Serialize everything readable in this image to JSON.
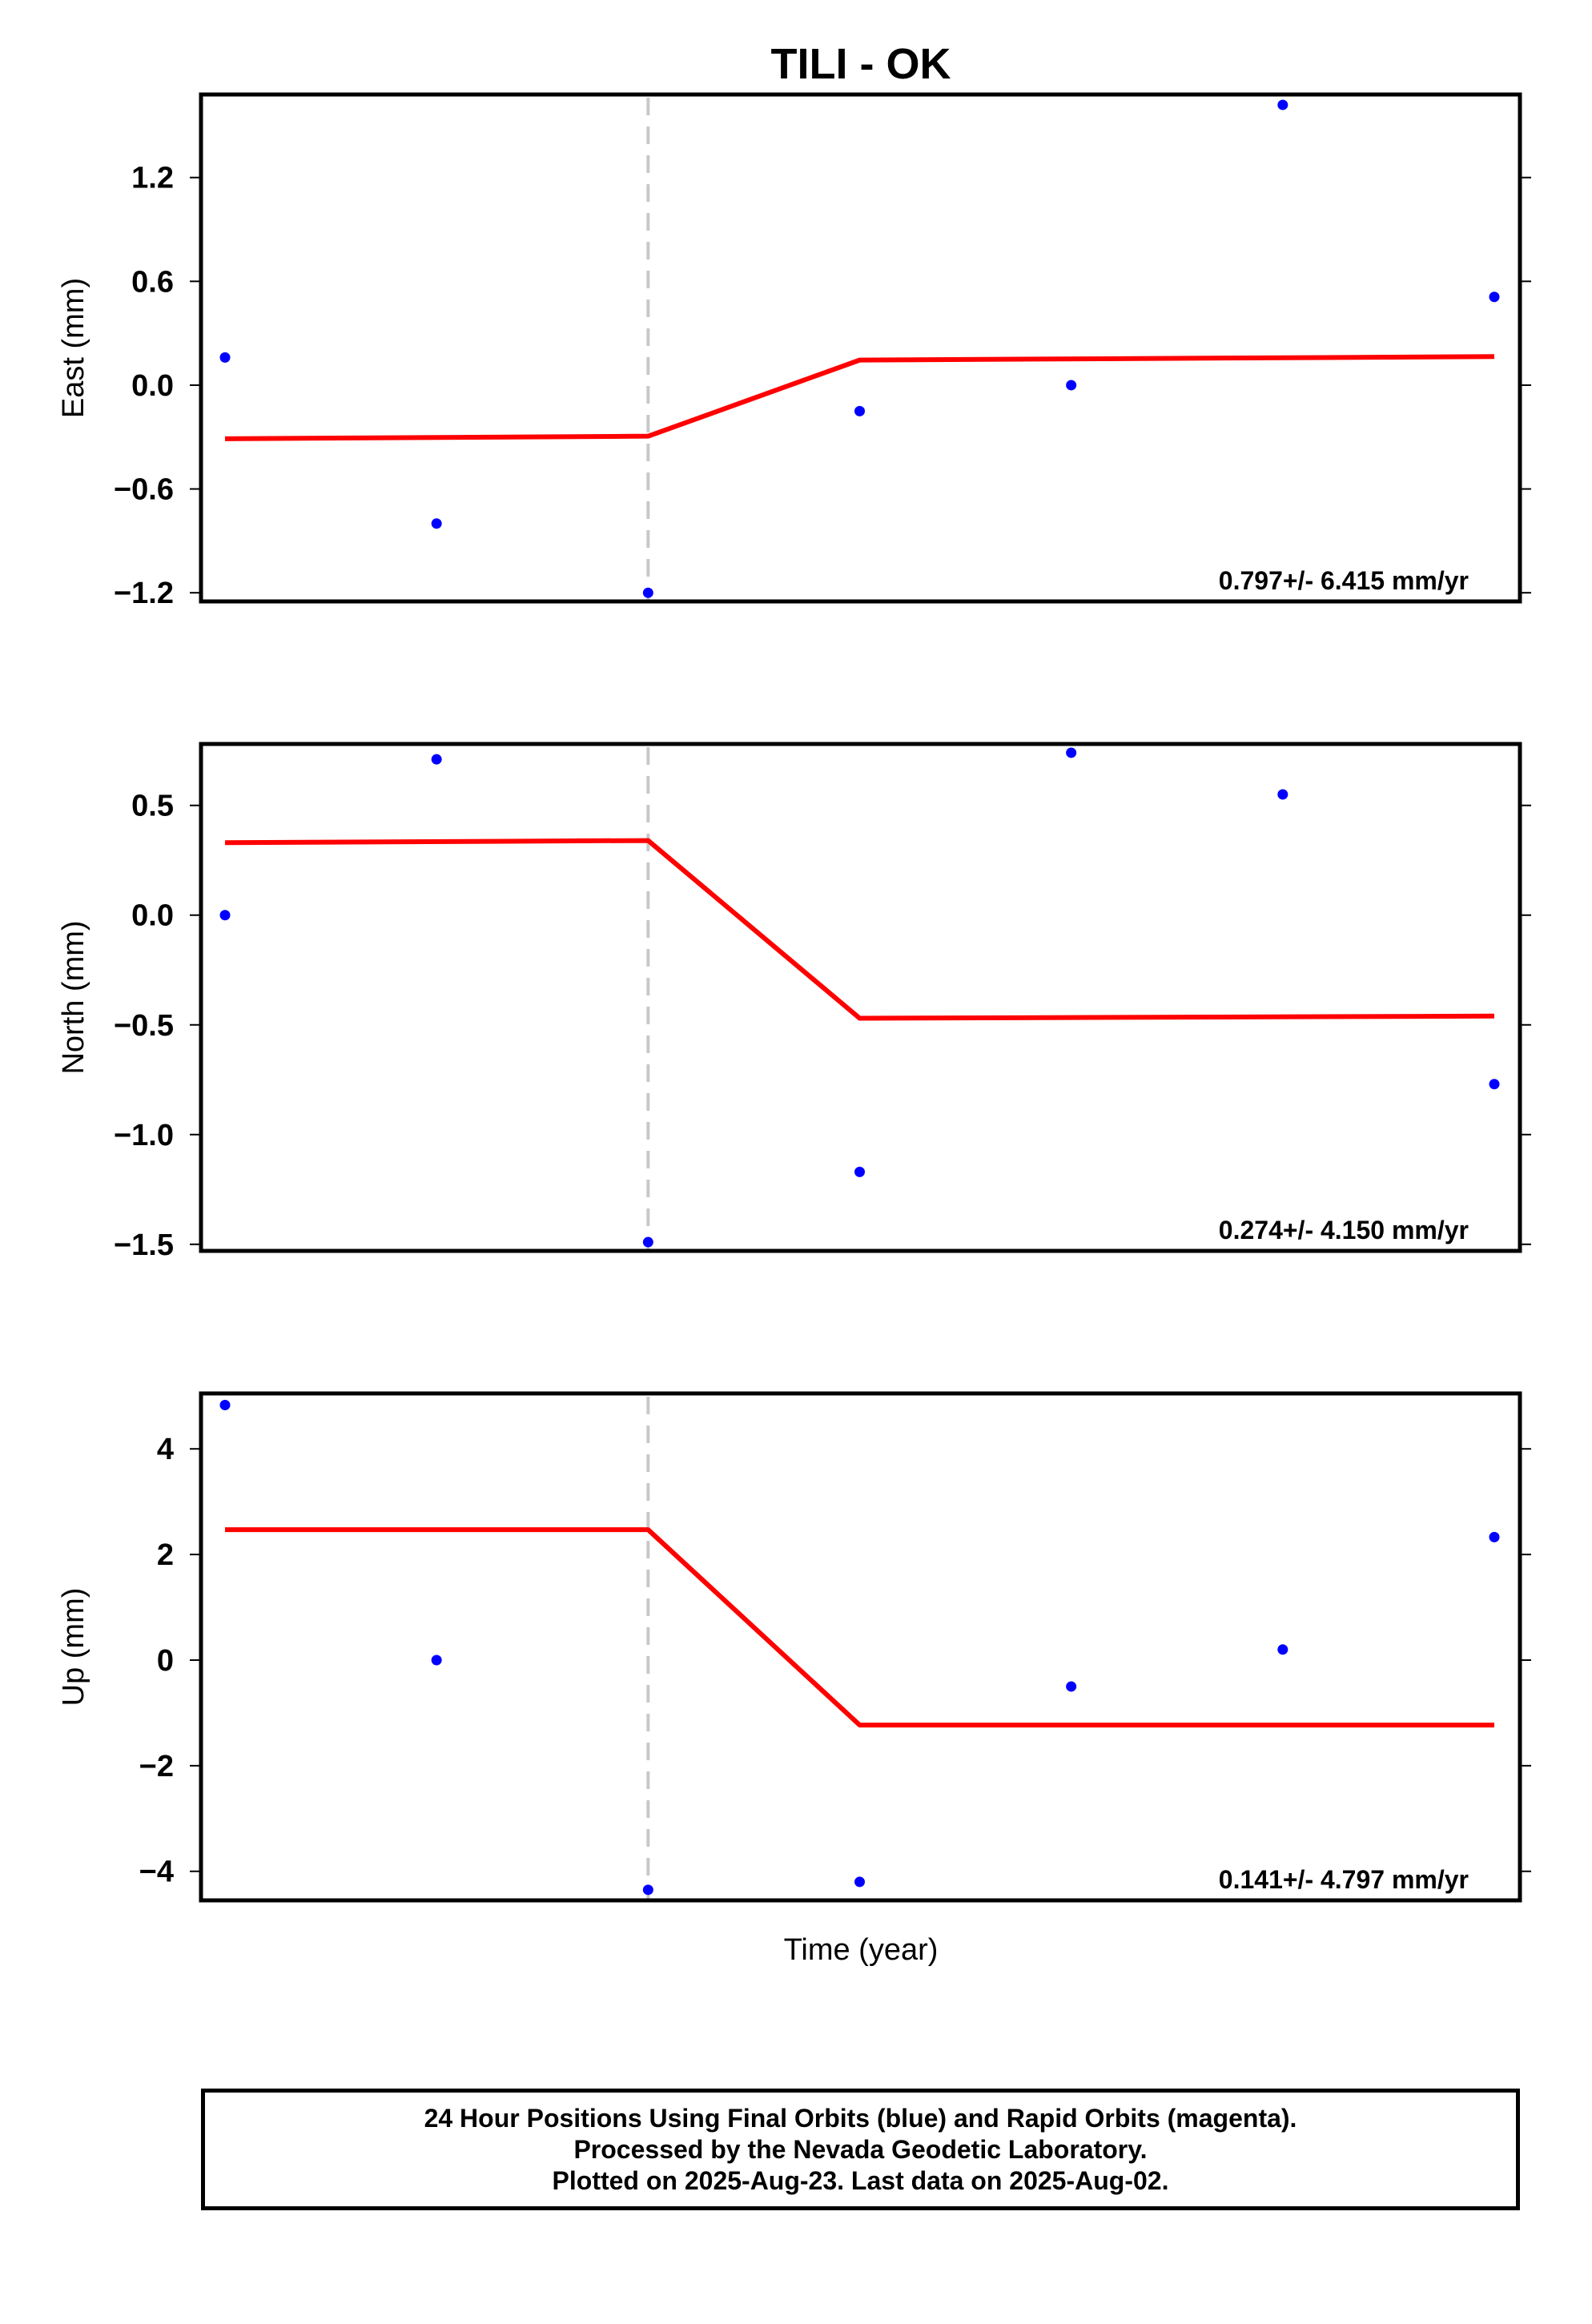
{
  "chart_data": {
    "type": "scatter",
    "title": "TILI - OK",
    "xlabel": "Time (year)",
    "grid": false,
    "event_line": {
      "x": 2,
      "style": "dashed",
      "color": "#c8c8c8"
    },
    "x": [
      0,
      1,
      2,
      3,
      4,
      5,
      6
    ],
    "panels": [
      {
        "name": "east",
        "ylabel": "East (mm)",
        "yticks": [
          -1.2,
          -0.6,
          0.0,
          0.6,
          1.2
        ],
        "ylim": [
          -1.25,
          1.68
        ],
        "points": [
          0.16,
          -0.8,
          -1.2,
          -0.15,
          0.0,
          1.62,
          0.51
        ],
        "fit_x": [
          0,
          2,
          3,
          6
        ],
        "fit_y": [
          -0.31,
          -0.295,
          0.145,
          0.165
        ],
        "rate": "0.797+/- 6.415 mm/yr"
      },
      {
        "name": "north",
        "ylabel": "North (mm)",
        "yticks": [
          -1.5,
          -1.0,
          -0.5,
          0.0,
          0.5
        ],
        "ylim": [
          -1.53,
          0.78
        ],
        "points": [
          0.0,
          0.71,
          -1.49,
          -1.17,
          0.74,
          0.55,
          -0.77
        ],
        "fit_x": [
          0,
          2,
          3,
          6
        ],
        "fit_y": [
          0.33,
          0.34,
          -0.47,
          -0.46
        ],
        "rate": "0.274+/- 4.150 mm/yr"
      },
      {
        "name": "up",
        "ylabel": "Up (mm)",
        "yticks": [
          -4,
          -2,
          0,
          2,
          4
        ],
        "ylim": [
          -4.55,
          5.05
        ],
        "points": [
          4.83,
          0.0,
          -4.35,
          -4.2,
          -0.5,
          0.2,
          2.33
        ],
        "fit_x": [
          0,
          2,
          3,
          6
        ],
        "fit_y": [
          2.47,
          2.47,
          -1.23,
          -1.23
        ],
        "rate": "0.141+/- 4.797 mm/yr"
      }
    ],
    "colors": {
      "final_orbits": "#0000ff",
      "fit": "#ff0000",
      "event": "#c8c8c8",
      "axes": "#000000"
    }
  },
  "footer": {
    "line1": "24 Hour Positions Using Final Orbits (blue) and Rapid Orbits (magenta).",
    "line2": "Processed by the Nevada Geodetic Laboratory.",
    "line3": "Plotted on 2025-Aug-23. Last data on 2025-Aug-02."
  }
}
